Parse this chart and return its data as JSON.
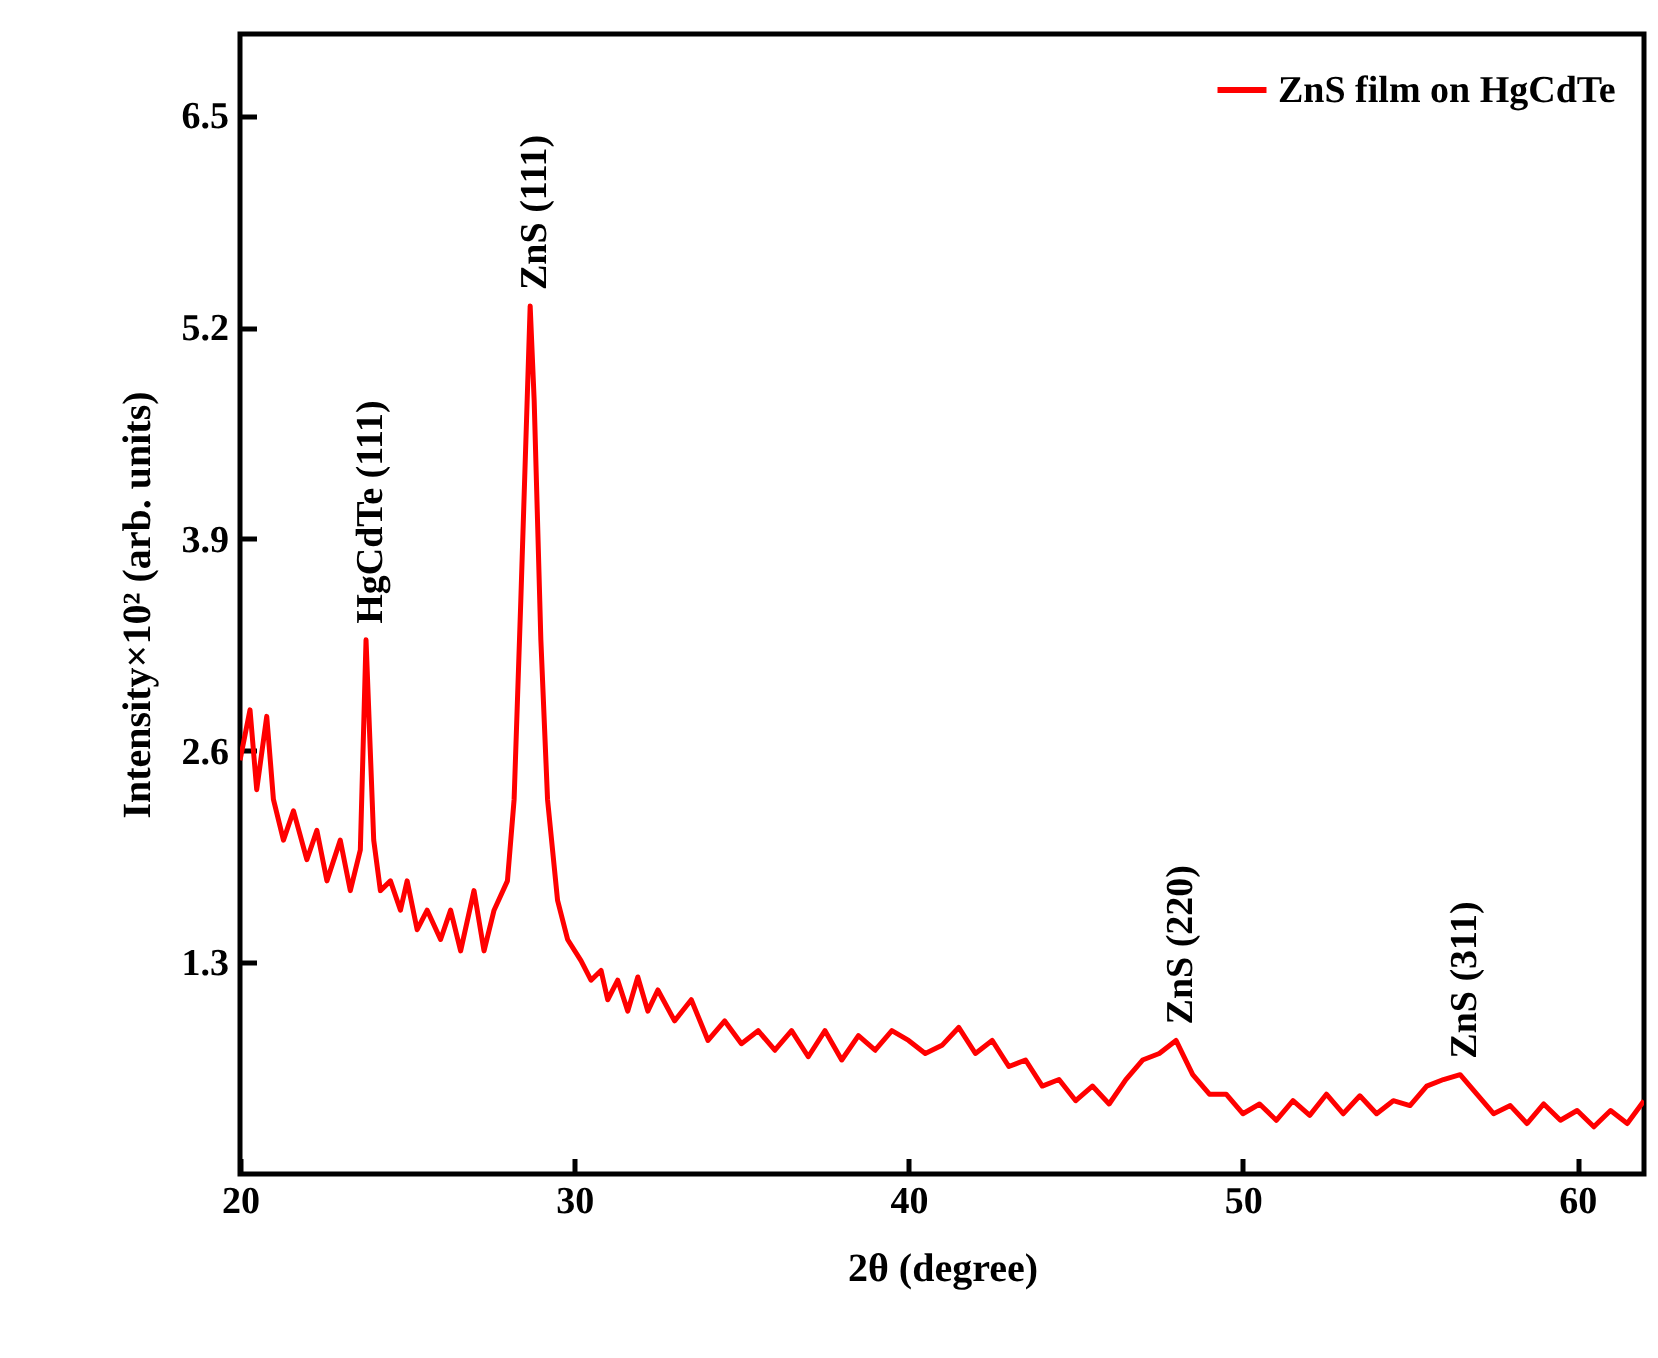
{
  "chart_data": {
    "type": "line",
    "xlabel": "2θ (degree)",
    "ylabel": "Intensity×10² (arb. units)",
    "xlim": [
      20,
      62
    ],
    "ylim": [
      0,
      7
    ],
    "xticks": [
      20,
      30,
      40,
      50,
      60
    ],
    "yticks": [
      1.3,
      2.6,
      3.9,
      5.2,
      6.5
    ],
    "grid": false,
    "legend": "top right",
    "annotations": [
      {
        "text": "HgCdTe (111)",
        "x": 23.77,
        "y": 3.28
      },
      {
        "text": "ZnS (111)",
        "x": 28.68,
        "y": 5.33
      },
      {
        "text": "ZnS (220)",
        "x": 48.0,
        "y": 0.82
      },
      {
        "text": "ZnS (311)",
        "x": 56.5,
        "y": 0.61
      }
    ],
    "series": [
      {
        "name": "ZnS film on HgCdTe",
        "color": "#ff0000",
        "x": [
          20.0,
          20.3,
          20.5,
          20.8,
          21.0,
          21.3,
          21.6,
          22.0,
          22.3,
          22.6,
          23.0,
          23.3,
          23.6,
          23.77,
          24.0,
          24.2,
          24.5,
          24.8,
          25.0,
          25.3,
          25.6,
          26.0,
          26.3,
          26.6,
          27.0,
          27.3,
          27.6,
          28.0,
          28.2,
          28.4,
          28.68,
          28.8,
          29.0,
          29.2,
          29.5,
          29.8,
          30.2,
          30.5,
          30.8,
          31.0,
          31.3,
          31.6,
          31.9,
          32.2,
          32.5,
          33.0,
          33.5,
          34.0,
          34.5,
          35.0,
          35.5,
          36.0,
          36.5,
          37.0,
          37.5,
          38.0,
          38.5,
          39.0,
          39.5,
          40.0,
          40.5,
          41.0,
          41.5,
          42.0,
          42.5,
          43.0,
          43.5,
          44.0,
          44.5,
          45.0,
          45.5,
          46.0,
          46.5,
          47.0,
          47.5,
          48.0,
          48.5,
          49.0,
          49.5,
          50.0,
          50.5,
          51.0,
          51.5,
          52.0,
          52.5,
          53.0,
          53.5,
          54.0,
          54.5,
          55.0,
          55.5,
          56.0,
          56.5,
          57.0,
          57.5,
          58.0,
          58.5,
          59.0,
          59.5,
          60.0,
          60.5,
          61.0,
          61.5,
          62.0
        ],
        "values": [
          2.54,
          2.85,
          2.36,
          2.81,
          2.3,
          2.05,
          2.23,
          1.93,
          2.11,
          1.8,
          2.05,
          1.74,
          1.99,
          3.28,
          2.05,
          1.74,
          1.8,
          1.62,
          1.8,
          1.5,
          1.62,
          1.44,
          1.62,
          1.37,
          1.74,
          1.37,
          1.62,
          1.8,
          2.3,
          3.52,
          5.33,
          4.75,
          3.28,
          2.3,
          1.68,
          1.44,
          1.31,
          1.19,
          1.25,
          1.07,
          1.19,
          1.0,
          1.21,
          1.0,
          1.13,
          0.94,
          1.07,
          0.82,
          0.94,
          0.8,
          0.88,
          0.76,
          0.88,
          0.72,
          0.88,
          0.7,
          0.85,
          0.76,
          0.88,
          0.82,
          0.74,
          0.79,
          0.9,
          0.74,
          0.82,
          0.66,
          0.7,
          0.54,
          0.58,
          0.45,
          0.54,
          0.43,
          0.58,
          0.7,
          0.74,
          0.82,
          0.61,
          0.49,
          0.49,
          0.37,
          0.43,
          0.33,
          0.45,
          0.36,
          0.49,
          0.37,
          0.48,
          0.37,
          0.45,
          0.42,
          0.54,
          0.58,
          0.61,
          0.49,
          0.37,
          0.42,
          0.31,
          0.43,
          0.33,
          0.39,
          0.29,
          0.39,
          0.31,
          0.45
        ]
      }
    ]
  }
}
